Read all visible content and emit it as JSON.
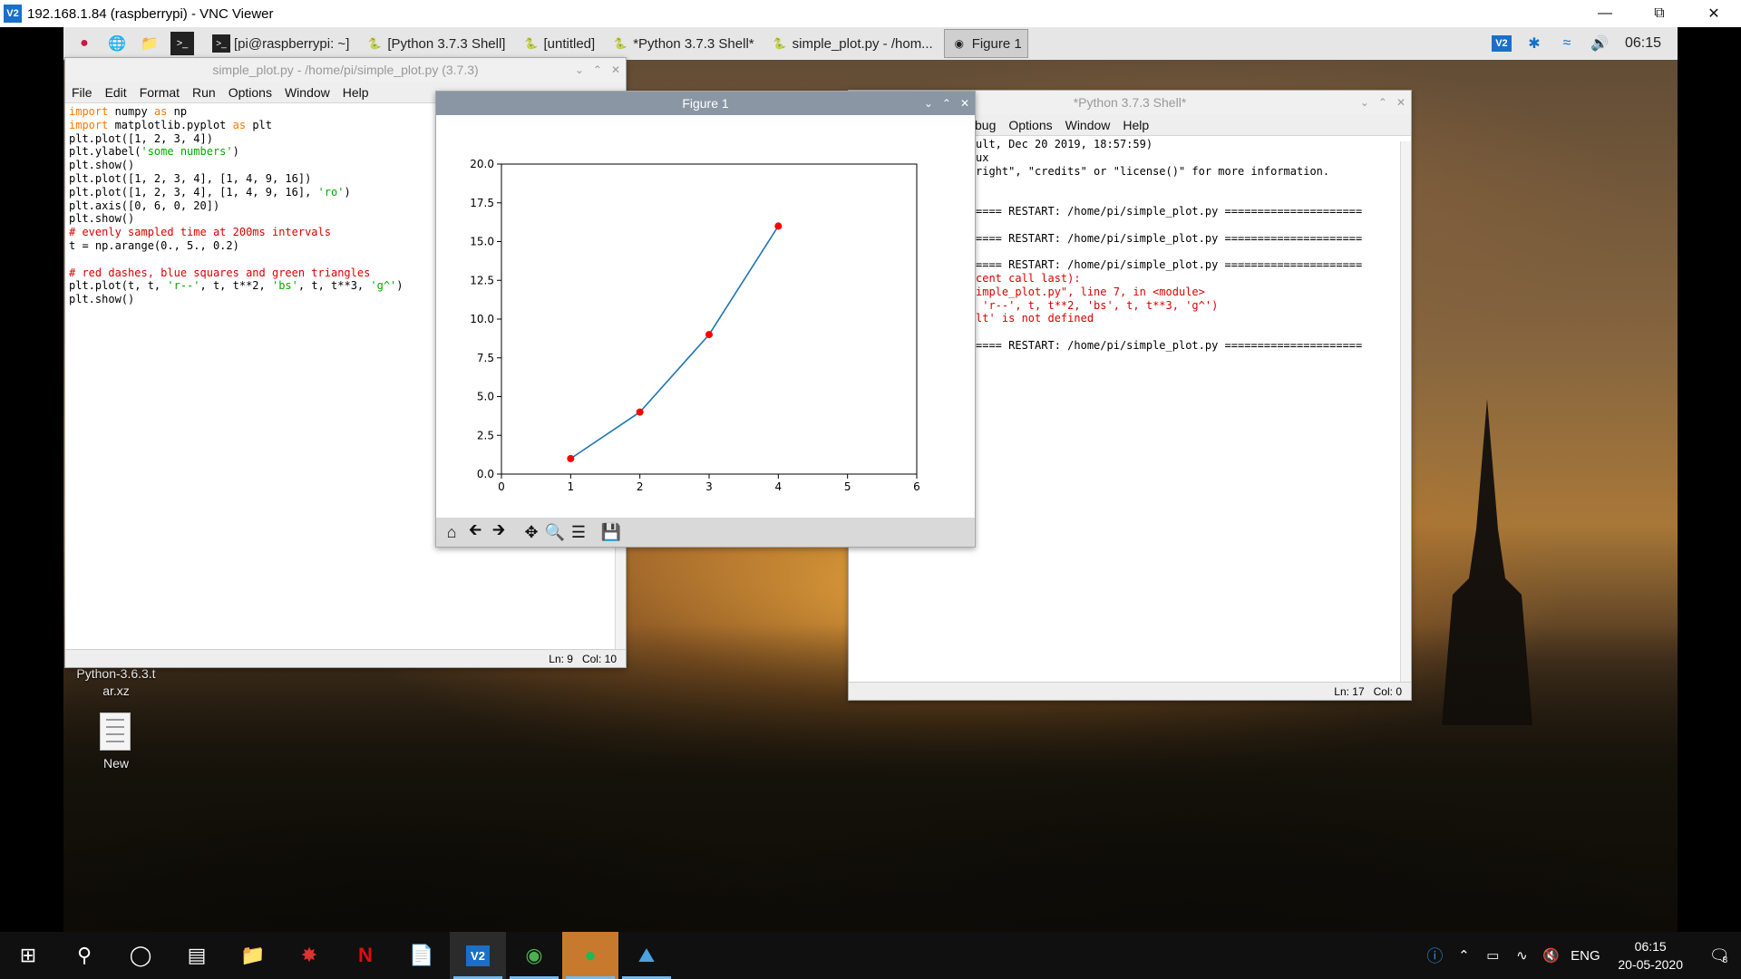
{
  "vnc": {
    "title": "192.168.1.84 (raspberrypi) - VNC Viewer",
    "logo": "V2",
    "controls": [
      "minimize-icon",
      "restore-icon",
      "close-icon"
    ]
  },
  "pi_taskbar": {
    "launchers": [
      "raspberry-menu-icon",
      "web-browser-icon",
      "file-manager-icon",
      "terminal-icon"
    ],
    "tasks": [
      {
        "label": "[pi@raspberrypi: ~]",
        "icon": "terminal-icon"
      },
      {
        "label": "[Python 3.7.3 Shell]",
        "icon": "python-icon"
      },
      {
        "label": "[untitled]",
        "icon": "python-icon"
      },
      {
        "label": "*Python 3.7.3 Shell*",
        "icon": "python-icon"
      },
      {
        "label": "simple_plot.py - /hom...",
        "icon": "python-icon"
      },
      {
        "label": "Figure 1",
        "icon": "matplotlib-icon",
        "active": true
      }
    ],
    "tray": {
      "vnc": "V2",
      "clock": "06:15"
    }
  },
  "editor": {
    "title": "simple_plot.py - /home/pi/simple_plot.py (3.7.3)",
    "menu": [
      "File",
      "Edit",
      "Format",
      "Run",
      "Options",
      "Window",
      "Help"
    ],
    "status_ln": "Ln: 9",
    "status_col": "Col: 10",
    "code_lines": [
      [
        [
          "kw",
          "import"
        ],
        [
          "t",
          " numpy "
        ],
        [
          "kw",
          "as"
        ],
        [
          "t",
          " np"
        ]
      ],
      [
        [
          "kw",
          "import"
        ],
        [
          "t",
          " matplotlib.pyplot "
        ],
        [
          "kw",
          "as"
        ],
        [
          "t",
          " plt"
        ]
      ],
      [
        [
          "t",
          "plt.plot([1, 2, 3, 4])"
        ]
      ],
      [
        [
          "t",
          "plt.ylabel("
        ],
        [
          "str",
          "'some numbers'"
        ],
        [
          "t",
          ")"
        ]
      ],
      [
        [
          "t",
          "plt.show()"
        ]
      ],
      [
        [
          "t",
          "plt.plot([1, 2, 3, 4], [1, 4, 9, 16])"
        ]
      ],
      [
        [
          "t",
          "plt.plot([1, 2, 3, 4], [1, 4, 9, 16], "
        ],
        [
          "str",
          "'ro'"
        ],
        [
          "t",
          ")"
        ]
      ],
      [
        [
          "t",
          "plt.axis([0, 6, 0, 20])"
        ]
      ],
      [
        [
          "t",
          "plt.show()"
        ]
      ],
      [
        [
          "cmt",
          "# evenly sampled time at 200ms intervals"
        ]
      ],
      [
        [
          "t",
          "t = np.arange(0., 5., 0.2)"
        ]
      ],
      [
        [
          "t",
          ""
        ]
      ],
      [
        [
          "cmt",
          "# red dashes, blue squares and green triangles"
        ]
      ],
      [
        [
          "t",
          "plt.plot(t, t, "
        ],
        [
          "str",
          "'r--'"
        ],
        [
          "t",
          ", t, t**2, "
        ],
        [
          "str",
          "'bs'"
        ],
        [
          "t",
          ", t, t**3, "
        ],
        [
          "str",
          "'g^'"
        ],
        [
          "t",
          ")"
        ]
      ],
      [
        [
          "t",
          "plt.show()"
        ]
      ]
    ]
  },
  "shell": {
    "title": "*Python 3.7.3 Shell*",
    "menu": [
      "bug",
      "Options",
      "Window",
      "Help"
    ],
    "status_ln": "Ln: 17",
    "status_col": "Col: 0",
    "lines": [
      {
        "text": "ult, Dec 20 2019, 18:57:59)",
        "kind": "out"
      },
      {
        "text": "ux",
        "kind": "out"
      },
      {
        "text": "right\", \"credits\" or \"license()\" for more information.",
        "kind": "out"
      },
      {
        "text": "",
        "kind": "out"
      },
      {
        "text": "",
        "kind": "out"
      },
      {
        "text": "==== RESTART: /home/pi/simple_plot.py =====================",
        "kind": "out"
      },
      {
        "text": "",
        "kind": "out"
      },
      {
        "text": "==== RESTART: /home/pi/simple_plot.py =====================",
        "kind": "out"
      },
      {
        "text": "",
        "kind": "out"
      },
      {
        "text": "==== RESTART: /home/pi/simple_plot.py =====================",
        "kind": "out"
      },
      {
        "text": "cent call last):",
        "kind": "err"
      },
      {
        "text": "imple_plot.py\", line 7, in <module>",
        "kind": "err"
      },
      {
        "text": " 'r--', t, t**2, 'bs', t, t**3, 'g^')",
        "kind": "err"
      },
      {
        "text": "lt' is not defined",
        "kind": "err"
      },
      {
        "text": "",
        "kind": "out"
      },
      {
        "text": "==== RESTART: /home/pi/simple_plot.py =====================",
        "kind": "out"
      }
    ]
  },
  "figure": {
    "title": "Figure 1",
    "toolbar": [
      "home-icon",
      "back-icon",
      "forward-icon",
      "pan-icon",
      "zoom-icon",
      "configure-subplots-icon",
      "save-icon"
    ]
  },
  "chart_data": {
    "type": "line",
    "x": [
      1,
      2,
      3,
      4
    ],
    "series": [
      {
        "values": [
          1,
          4,
          9,
          16
        ],
        "color": "#1f77b4",
        "marker_color": "#ff0000"
      }
    ],
    "xlim": [
      0,
      6
    ],
    "ylim": [
      0,
      20
    ],
    "xticks": [
      "0",
      "1",
      "2",
      "3",
      "4",
      "5",
      "6"
    ],
    "yticks": [
      "0.0",
      "2.5",
      "5.0",
      "7.5",
      "10.0",
      "12.5",
      "15.0",
      "17.5",
      "20.0"
    ],
    "title": "",
    "xlabel": "",
    "ylabel": "",
    "grid": false
  },
  "desktop": {
    "icons": [
      {
        "label_line1": "Python-3.6.3.t",
        "label_line2": "ar.xz"
      },
      {
        "label": "New"
      }
    ]
  },
  "windows_taskbar": {
    "items": [
      "start-icon",
      "search-icon",
      "cortana-icon",
      "task-view-icon",
      "file-explorer-icon",
      "app-icon",
      "netflix-icon",
      "sticky-folder-icon",
      "vnc-viewer-icon",
      "chrome-icon",
      "spotify-icon",
      "photos-icon"
    ],
    "tray": {
      "lang": "ENG",
      "time": "06:15",
      "date": "20-05-2020",
      "notifications": "8"
    }
  }
}
